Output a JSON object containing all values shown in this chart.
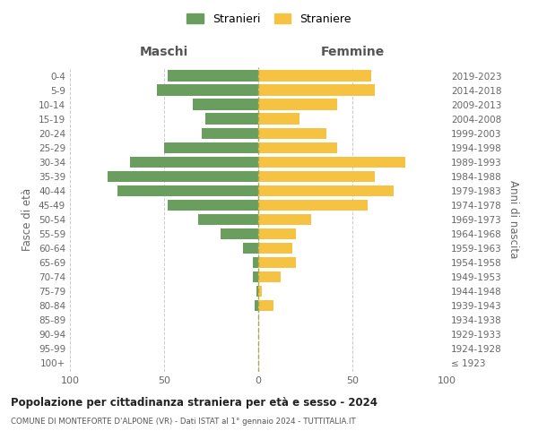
{
  "age_groups": [
    "100+",
    "95-99",
    "90-94",
    "85-89",
    "80-84",
    "75-79",
    "70-74",
    "65-69",
    "60-64",
    "55-59",
    "50-54",
    "45-49",
    "40-44",
    "35-39",
    "30-34",
    "25-29",
    "20-24",
    "15-19",
    "10-14",
    "5-9",
    "0-4"
  ],
  "birth_years": [
    "≤ 1923",
    "1924-1928",
    "1929-1933",
    "1934-1938",
    "1939-1943",
    "1944-1948",
    "1949-1953",
    "1954-1958",
    "1959-1963",
    "1964-1968",
    "1969-1973",
    "1974-1978",
    "1979-1983",
    "1984-1988",
    "1989-1993",
    "1994-1998",
    "1999-2003",
    "2004-2008",
    "2009-2013",
    "2014-2018",
    "2019-2023"
  ],
  "maschi": [
    0,
    0,
    0,
    0,
    2,
    1,
    3,
    3,
    8,
    20,
    32,
    48,
    75,
    80,
    68,
    50,
    30,
    28,
    35,
    54,
    48
  ],
  "femmine": [
    0,
    0,
    0,
    0,
    8,
    2,
    12,
    20,
    18,
    20,
    28,
    58,
    72,
    62,
    78,
    42,
    36,
    22,
    42,
    62,
    60
  ],
  "color_maschi": "#6a9e5e",
  "color_femmine": "#f5c242",
  "title": "Popolazione per cittadinanza straniera per età e sesso - 2024",
  "subtitle": "COMUNE DI MONTEFORTE D'ALPONE (VR) - Dati ISTAT al 1° gennaio 2024 - TUTTITALIA.IT",
  "xlabel_left": "Maschi",
  "xlabel_right": "Femmine",
  "ylabel_left": "Fasce di età",
  "ylabel_right": "Anni di nascita",
  "legend_maschi": "Stranieri",
  "legend_femmine": "Straniere",
  "xlim": 100,
  "background_color": "#ffffff",
  "grid_color": "#cccccc"
}
